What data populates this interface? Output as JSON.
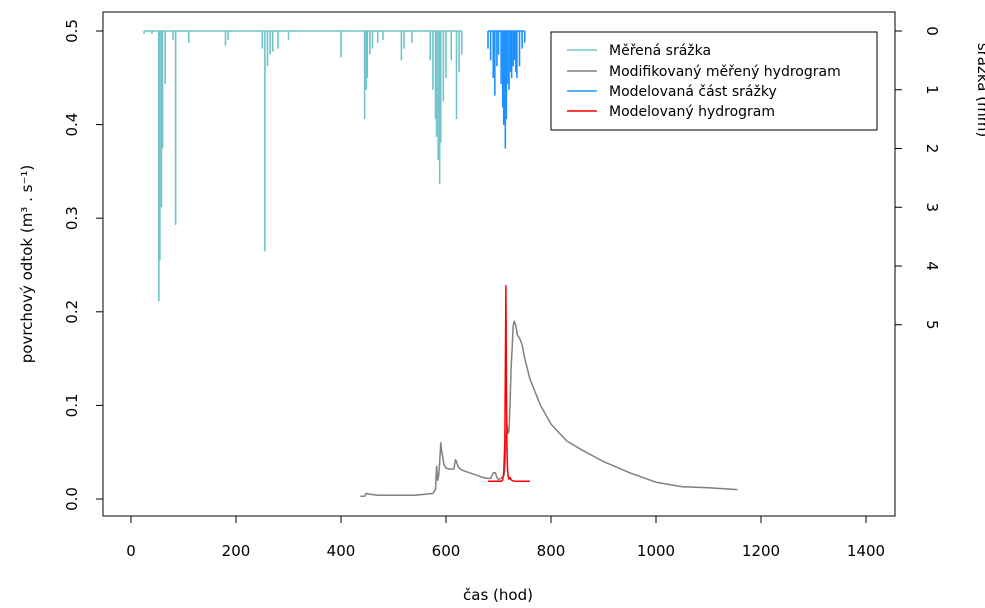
{
  "chart_data": {
    "type": "line",
    "xlabel": "čas (hod)",
    "ylabel_left": "povrchový odtok (m³ . s⁻¹)",
    "ylabel_right": "srážka (mm)",
    "xlim": [
      0,
      1400
    ],
    "ylim_left": [
      0,
      0.5
    ],
    "ylim_right_reversed": [
      0,
      8
    ],
    "x_ticks": [
      "0",
      "200",
      "400",
      "600",
      "800",
      "1000",
      "1200",
      "1400"
    ],
    "y_ticks_left": [
      "0.0",
      "0.1",
      "0.2",
      "0.3",
      "0.4",
      "0.5"
    ],
    "y_ticks_right": [
      "0",
      "1",
      "2",
      "3",
      "4",
      "5"
    ],
    "legend": {
      "position": "top-right",
      "entries": [
        {
          "label": "Měřená srážka",
          "color": "#71c3c9"
        },
        {
          "label": "Modifikovaný měřený hydrogram",
          "color": "#808080"
        },
        {
          "label": "Modelovaná část srážky",
          "color": "#1e90ff"
        },
        {
          "label": "Modelovaný hydrogram",
          "color": "#ff0000"
        }
      ]
    },
    "series": [
      {
        "name": "Měřená srážka",
        "kind": "rain_bars",
        "color": "#71c3c9",
        "x": [
          25,
          40,
          53,
          55,
          58,
          60,
          65,
          80,
          85,
          110,
          180,
          185,
          250,
          255,
          260,
          265,
          270,
          280,
          300,
          400,
          445,
          448,
          450,
          455,
          460,
          470,
          480,
          515,
          520,
          535,
          570,
          575,
          580,
          582,
          585,
          588,
          590,
          595,
          600,
          610,
          620,
          625,
          630
        ],
        "values": [
          0.05,
          0.05,
          4.6,
          3.9,
          3.0,
          2.0,
          0.9,
          0.15,
          3.3,
          0.2,
          0.25,
          0.15,
          0.3,
          3.75,
          0.6,
          0.4,
          0.35,
          0.3,
          0.15,
          0.45,
          1.5,
          1.0,
          0.8,
          0.4,
          0.3,
          0.2,
          0.15,
          0.5,
          0.3,
          0.2,
          0.5,
          1.0,
          1.5,
          1.8,
          2.2,
          2.6,
          1.9,
          1.2,
          0.8,
          0.5,
          1.5,
          0.7,
          0.4
        ]
      },
      {
        "name": "Modelovaná část srážky",
        "kind": "rain_bars",
        "color": "#1e90ff",
        "x": [
          680,
          685,
          690,
          693,
          697,
          700,
          705,
          708,
          710,
          713,
          715,
          718,
          720,
          723,
          725,
          728,
          730,
          733,
          735,
          740,
          745,
          750
        ],
        "values": [
          0.3,
          0.5,
          0.8,
          1.1,
          0.6,
          0.4,
          0.9,
          1.3,
          1.6,
          2.0,
          1.5,
          0.9,
          1.0,
          0.7,
          0.8,
          0.6,
          0.5,
          0.7,
          0.8,
          0.6,
          0.3,
          0.2
        ]
      },
      {
        "name": "Modifikovaný měřený hydrogram",
        "kind": "line",
        "color": "#808080",
        "x": [
          437,
          445,
          448,
          455,
          470,
          500,
          520,
          540,
          560,
          575,
          580,
          582,
          584,
          586,
          588,
          590,
          592,
          594,
          596,
          600,
          605,
          615,
          618,
          620,
          622,
          625,
          630,
          640,
          650,
          660,
          670,
          680,
          685,
          690,
          694,
          697,
          700,
          705,
          710,
          712,
          714,
          716,
          718,
          720,
          722,
          724,
          726,
          728,
          730,
          733,
          736,
          740,
          745,
          750,
          760,
          780,
          800,
          830,
          860,
          900,
          950,
          1000,
          1050,
          1100,
          1155
        ],
        "values": [
          0.003,
          0.003,
          0.006,
          0.005,
          0.004,
          0.004,
          0.004,
          0.004,
          0.005,
          0.006,
          0.01,
          0.035,
          0.02,
          0.025,
          0.04,
          0.06,
          0.05,
          0.045,
          0.037,
          0.033,
          0.032,
          0.032,
          0.042,
          0.04,
          0.036,
          0.033,
          0.031,
          0.029,
          0.027,
          0.025,
          0.023,
          0.022,
          0.022,
          0.028,
          0.028,
          0.023,
          0.021,
          0.022,
          0.025,
          0.03,
          0.06,
          0.08,
          0.07,
          0.073,
          0.1,
          0.14,
          0.16,
          0.185,
          0.19,
          0.185,
          0.175,
          0.172,
          0.165,
          0.15,
          0.128,
          0.1,
          0.08,
          0.062,
          0.052,
          0.04,
          0.028,
          0.018,
          0.013,
          0.012,
          0.01
        ]
      },
      {
        "name": "Modelovaný hydrogram",
        "kind": "line",
        "color": "#ff0000",
        "x": [
          680,
          690,
          700,
          705,
          708,
          710,
          712,
          713,
          714,
          715,
          716,
          717,
          718,
          720,
          722,
          725,
          730,
          740,
          760
        ],
        "values": [
          0.019,
          0.019,
          0.019,
          0.019,
          0.02,
          0.03,
          0.06,
          0.13,
          0.228,
          0.13,
          0.06,
          0.035,
          0.025,
          0.021,
          0.023,
          0.02,
          0.019,
          0.019,
          0.019
        ]
      }
    ]
  }
}
